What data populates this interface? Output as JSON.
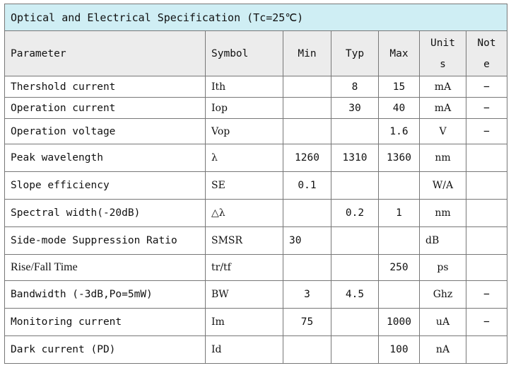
{
  "title": "Optical and Electrical Specification (Tc=25℃)",
  "headers": {
    "parameter": "Parameter",
    "symbol": "Symbol",
    "min": "Min",
    "typ": "Typ",
    "max": "Max",
    "units_line1": "Unit",
    "units_line2": "s",
    "note_line1": "Not",
    "note_line2": "e"
  },
  "rows": [
    {
      "parameter": "Thershold current",
      "symbol": "Ith",
      "min": "",
      "typ": "8",
      "max": "15",
      "units": "mA",
      "note": "−"
    },
    {
      "parameter": "Operation current",
      "symbol": "Iop",
      "min": "",
      "typ": "30",
      "max": "40",
      "units": "mA",
      "note": "−"
    },
    {
      "parameter": "Operation voltage",
      "symbol": "Vop",
      "min": "",
      "typ": "",
      "max": "1.6",
      "units": "V",
      "note": "−"
    },
    {
      "parameter": "Peak wavelength",
      "symbol": "λ",
      "min": "1260",
      "typ": "1310",
      "max": "1360",
      "units": "nm",
      "note": ""
    },
    {
      "parameter": "Slope efficiency",
      "symbol": "SE",
      "min": "0.1",
      "typ": "",
      "max": "",
      "units": "W/A",
      "note": ""
    },
    {
      "parameter": "Spectral width(-20dB)",
      "symbol": "△λ",
      "min": "",
      "typ": "0.2",
      "max": "1",
      "units": "nm",
      "note": ""
    },
    {
      "parameter": "Side-mode Suppression Ratio",
      "symbol": "SMSR",
      "min": "30",
      "typ": "",
      "max": "",
      "units": "dB",
      "note": ""
    },
    {
      "parameter": "Rise/Fall Time",
      "symbol": "tr/tf",
      "min": "",
      "typ": "",
      "max": "250",
      "units": "ps",
      "note": ""
    },
    {
      "parameter": "Bandwidth (-3dB,Po=5mW)",
      "symbol": "BW",
      "min": "3",
      "typ": "4.5",
      "max": "",
      "units": "Ghz",
      "note": "−"
    },
    {
      "parameter": "Monitoring current",
      "symbol": "Im",
      "min": "75",
      "typ": "",
      "max": "1000",
      "units": "uA",
      "note": "−"
    },
    {
      "parameter": "Dark current (PD)",
      "symbol": "Id",
      "min": "",
      "typ": "",
      "max": "100",
      "units": "nA",
      "note": ""
    }
  ]
}
